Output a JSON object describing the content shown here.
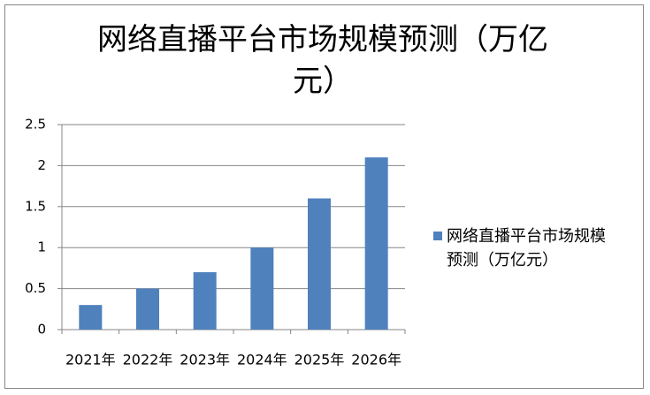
{
  "chart_data": {
    "type": "bar",
    "title": "网络直播平台市场规模预测（万亿元）",
    "categories": [
      "2021年",
      "2022年",
      "2023年",
      "2024年",
      "2025年",
      "2026年"
    ],
    "series": [
      {
        "name": "网络直播平台市场规模预测（万亿元）",
        "color": "#4f81bd",
        "values": [
          0.3,
          0.5,
          0.7,
          1,
          1.6,
          2.1
        ]
      }
    ],
    "ylim": [
      0,
      2.5
    ],
    "yticks": [
      0,
      0.5,
      1,
      1.5,
      2,
      2.5
    ],
    "grid": true,
    "legend": "right"
  }
}
